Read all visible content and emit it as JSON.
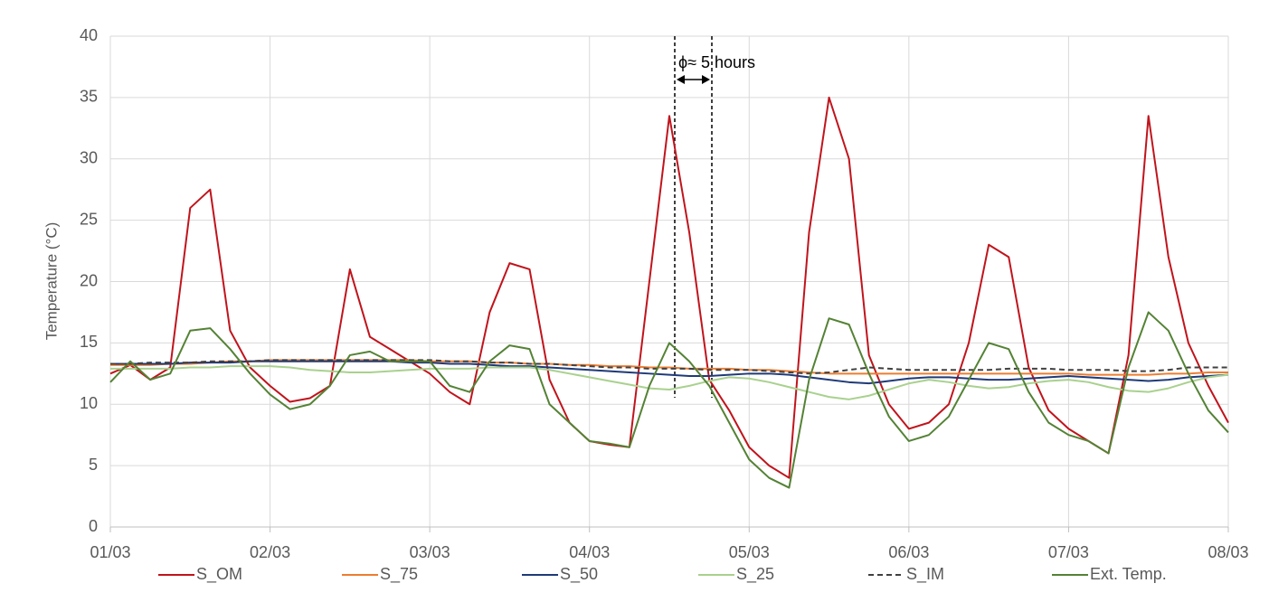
{
  "chart_data": {
    "type": "line",
    "y_label": "Temperature  (°C)",
    "annotation": "ϕ≈ 5 hours",
    "x": [
      0,
      0.125,
      0.25,
      0.375,
      0.5,
      0.625,
      0.75,
      0.875,
      1,
      1.125,
      1.25,
      1.375,
      1.5,
      1.625,
      1.75,
      1.875,
      2,
      2.125,
      2.25,
      2.375,
      2.5,
      2.625,
      2.75,
      2.875,
      3,
      3.125,
      3.25,
      3.375,
      3.5,
      3.625,
      3.75,
      3.875,
      4,
      4.125,
      4.25,
      4.375,
      4.5,
      4.625,
      4.75,
      4.875,
      5,
      5.125,
      5.25,
      5.375,
      5.5,
      5.625,
      5.75,
      5.875,
      6,
      6.125,
      6.25,
      6.375,
      6.5,
      6.625,
      6.75,
      6.875,
      7
    ],
    "xlim": [
      0,
      7
    ],
    "xticks": [
      {
        "value": 0,
        "label": "01/03"
      },
      {
        "value": 1,
        "label": "02/03"
      },
      {
        "value": 2,
        "label": "03/03"
      },
      {
        "value": 3,
        "label": "04/03"
      },
      {
        "value": 4,
        "label": "05/03"
      },
      {
        "value": 5,
        "label": "06/03"
      },
      {
        "value": 6,
        "label": "07/03"
      },
      {
        "value": 7,
        "label": "08/03"
      }
    ],
    "ylim": [
      0,
      40
    ],
    "yticks": [
      0,
      5,
      10,
      15,
      20,
      25,
      30,
      35,
      40
    ],
    "grid": true,
    "legend": "bottom",
    "series": [
      {
        "name": "S_OM",
        "color": "#c0141c",
        "values": [
          12.5,
          13.2,
          12.0,
          13.0,
          26.0,
          27.5,
          16.0,
          13.0,
          11.5,
          10.2,
          10.5,
          11.5,
          21.0,
          15.5,
          14.5,
          13.5,
          12.5,
          11.0,
          10.0,
          17.5,
          21.5,
          21.0,
          12.0,
          8.5,
          7.0,
          6.7,
          6.5,
          20.0,
          33.5,
          24.0,
          12.0,
          9.5,
          6.5,
          5.0,
          4.0,
          24.0,
          35.0,
          30.0,
          14.0,
          10.0,
          8.0,
          8.5,
          10.0,
          15.0,
          23.0,
          22.0,
          13.0,
          9.5,
          8.0,
          7.0,
          6.0,
          14.0,
          33.5,
          22.0,
          15.0,
          11.5,
          8.5
        ]
      },
      {
        "name": "S_75",
        "color": "#ed7d31",
        "values": [
          13.2,
          13.2,
          13.2,
          13.3,
          13.3,
          13.4,
          13.5,
          13.5,
          13.6,
          13.6,
          13.6,
          13.6,
          13.6,
          13.6,
          13.6,
          13.6,
          13.5,
          13.5,
          13.5,
          13.4,
          13.4,
          13.3,
          13.3,
          13.2,
          13.2,
          13.1,
          13.1,
          13.0,
          13.0,
          12.9,
          12.9,
          12.9,
          12.8,
          12.8,
          12.7,
          12.6,
          12.5,
          12.5,
          12.5,
          12.5,
          12.5,
          12.5,
          12.5,
          12.5,
          12.5,
          12.5,
          12.5,
          12.5,
          12.5,
          12.4,
          12.4,
          12.4,
          12.4,
          12.5,
          12.5,
          12.6,
          12.6
        ]
      },
      {
        "name": "S_50",
        "color": "#1f3a78",
        "values": [
          13.3,
          13.3,
          13.3,
          13.3,
          13.4,
          13.4,
          13.4,
          13.5,
          13.5,
          13.5,
          13.5,
          13.5,
          13.5,
          13.5,
          13.5,
          13.4,
          13.4,
          13.3,
          13.3,
          13.2,
          13.1,
          13.1,
          13.0,
          12.9,
          12.8,
          12.7,
          12.6,
          12.5,
          12.4,
          12.3,
          12.3,
          12.4,
          12.5,
          12.5,
          12.4,
          12.2,
          12.0,
          11.8,
          11.7,
          11.9,
          12.1,
          12.2,
          12.2,
          12.1,
          12.0,
          12.0,
          12.1,
          12.2,
          12.3,
          12.2,
          12.1,
          12.0,
          11.9,
          12.0,
          12.2,
          12.3,
          12.4
        ]
      },
      {
        "name": "S_25",
        "color": "#a9d18e",
        "values": [
          12.9,
          12.9,
          12.9,
          12.9,
          13.0,
          13.0,
          13.1,
          13.1,
          13.1,
          13.0,
          12.8,
          12.7,
          12.6,
          12.6,
          12.7,
          12.8,
          12.9,
          12.9,
          12.9,
          13.0,
          13.0,
          13.0,
          12.8,
          12.5,
          12.2,
          11.9,
          11.6,
          11.3,
          11.2,
          11.5,
          11.9,
          12.2,
          12.1,
          11.8,
          11.4,
          11.0,
          10.6,
          10.4,
          10.7,
          11.2,
          11.7,
          12.0,
          11.8,
          11.5,
          11.3,
          11.4,
          11.7,
          11.9,
          12.0,
          11.8,
          11.4,
          11.1,
          11.0,
          11.3,
          11.8,
          12.2,
          12.4
        ]
      },
      {
        "name": "S_IM",
        "color": "#404040",
        "dashed": true,
        "values": [
          13.3,
          13.3,
          13.4,
          13.4,
          13.4,
          13.5,
          13.5,
          13.5,
          13.6,
          13.6,
          13.6,
          13.6,
          13.6,
          13.6,
          13.6,
          13.6,
          13.6,
          13.5,
          13.5,
          13.4,
          13.4,
          13.3,
          13.3,
          13.2,
          13.1,
          13.0,
          13.0,
          12.9,
          12.9,
          12.9,
          12.8,
          12.8,
          12.8,
          12.7,
          12.6,
          12.5,
          12.6,
          12.8,
          13.0,
          12.9,
          12.8,
          12.8,
          12.8,
          12.8,
          12.8,
          12.9,
          12.9,
          12.9,
          12.8,
          12.8,
          12.8,
          12.7,
          12.7,
          12.8,
          13.0,
          13.0,
          13.0
        ]
      },
      {
        "name": "Ext. Temp.",
        "color": "#548235",
        "values": [
          11.8,
          13.5,
          12.0,
          12.5,
          16.0,
          16.2,
          14.5,
          12.5,
          10.8,
          9.6,
          10.0,
          11.5,
          14.0,
          14.3,
          13.5,
          13.5,
          13.5,
          11.5,
          11.0,
          13.5,
          14.8,
          14.5,
          10.0,
          8.5,
          7.0,
          6.8,
          6.5,
          11.5,
          15.0,
          13.5,
          11.5,
          8.5,
          5.5,
          4.0,
          3.2,
          12.0,
          17.0,
          16.5,
          12.5,
          9.0,
          7.0,
          7.5,
          9.0,
          12.0,
          15.0,
          14.5,
          11.0,
          8.5,
          7.5,
          7.0,
          6.0,
          13.0,
          17.5,
          16.0,
          12.5,
          9.5,
          7.7
        ]
      }
    ]
  }
}
